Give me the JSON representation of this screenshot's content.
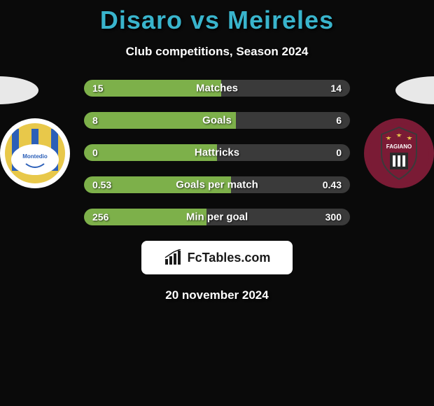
{
  "background_color": "#0a0a0a",
  "title": {
    "left": "Disaro",
    "vs": " vs ",
    "right": "Meireles",
    "color": "#39b4cc"
  },
  "subtitle": "Club competitions, Season 2024",
  "left_side": {
    "ellipse_color": "#e8e8e8",
    "crest_border": "#ffffff",
    "crest_bg": "#e8c84a",
    "crest_accent1": "#2b5fb8",
    "crest_accent2": "#ffffff",
    "crest_label": "Montedio"
  },
  "right_side": {
    "ellipse_color": "#e8e8e8",
    "crest_bg": "#7a1b35",
    "crest_accent1": "#2b2b2b",
    "crest_label": "FAGIANO"
  },
  "bars": {
    "left_color": "#7db04a",
    "right_color": "#3a3a3a",
    "rows": [
      {
        "label": "Matches",
        "left": "15",
        "right": "14",
        "left_pct": 51.7
      },
      {
        "label": "Goals",
        "left": "8",
        "right": "6",
        "left_pct": 57.1
      },
      {
        "label": "Hattricks",
        "left": "0",
        "right": "0",
        "left_pct": 50.0
      },
      {
        "label": "Goals per match",
        "left": "0.53",
        "right": "0.43",
        "left_pct": 55.2
      },
      {
        "label": "Min per goal",
        "left": "256",
        "right": "300",
        "left_pct": 46.0
      }
    ]
  },
  "attribution": {
    "bg": "#ffffff",
    "text": "FcTables.com",
    "text_color": "#1a1a1a",
    "icon_color": "#1a1a1a"
  },
  "date": "20 november 2024"
}
